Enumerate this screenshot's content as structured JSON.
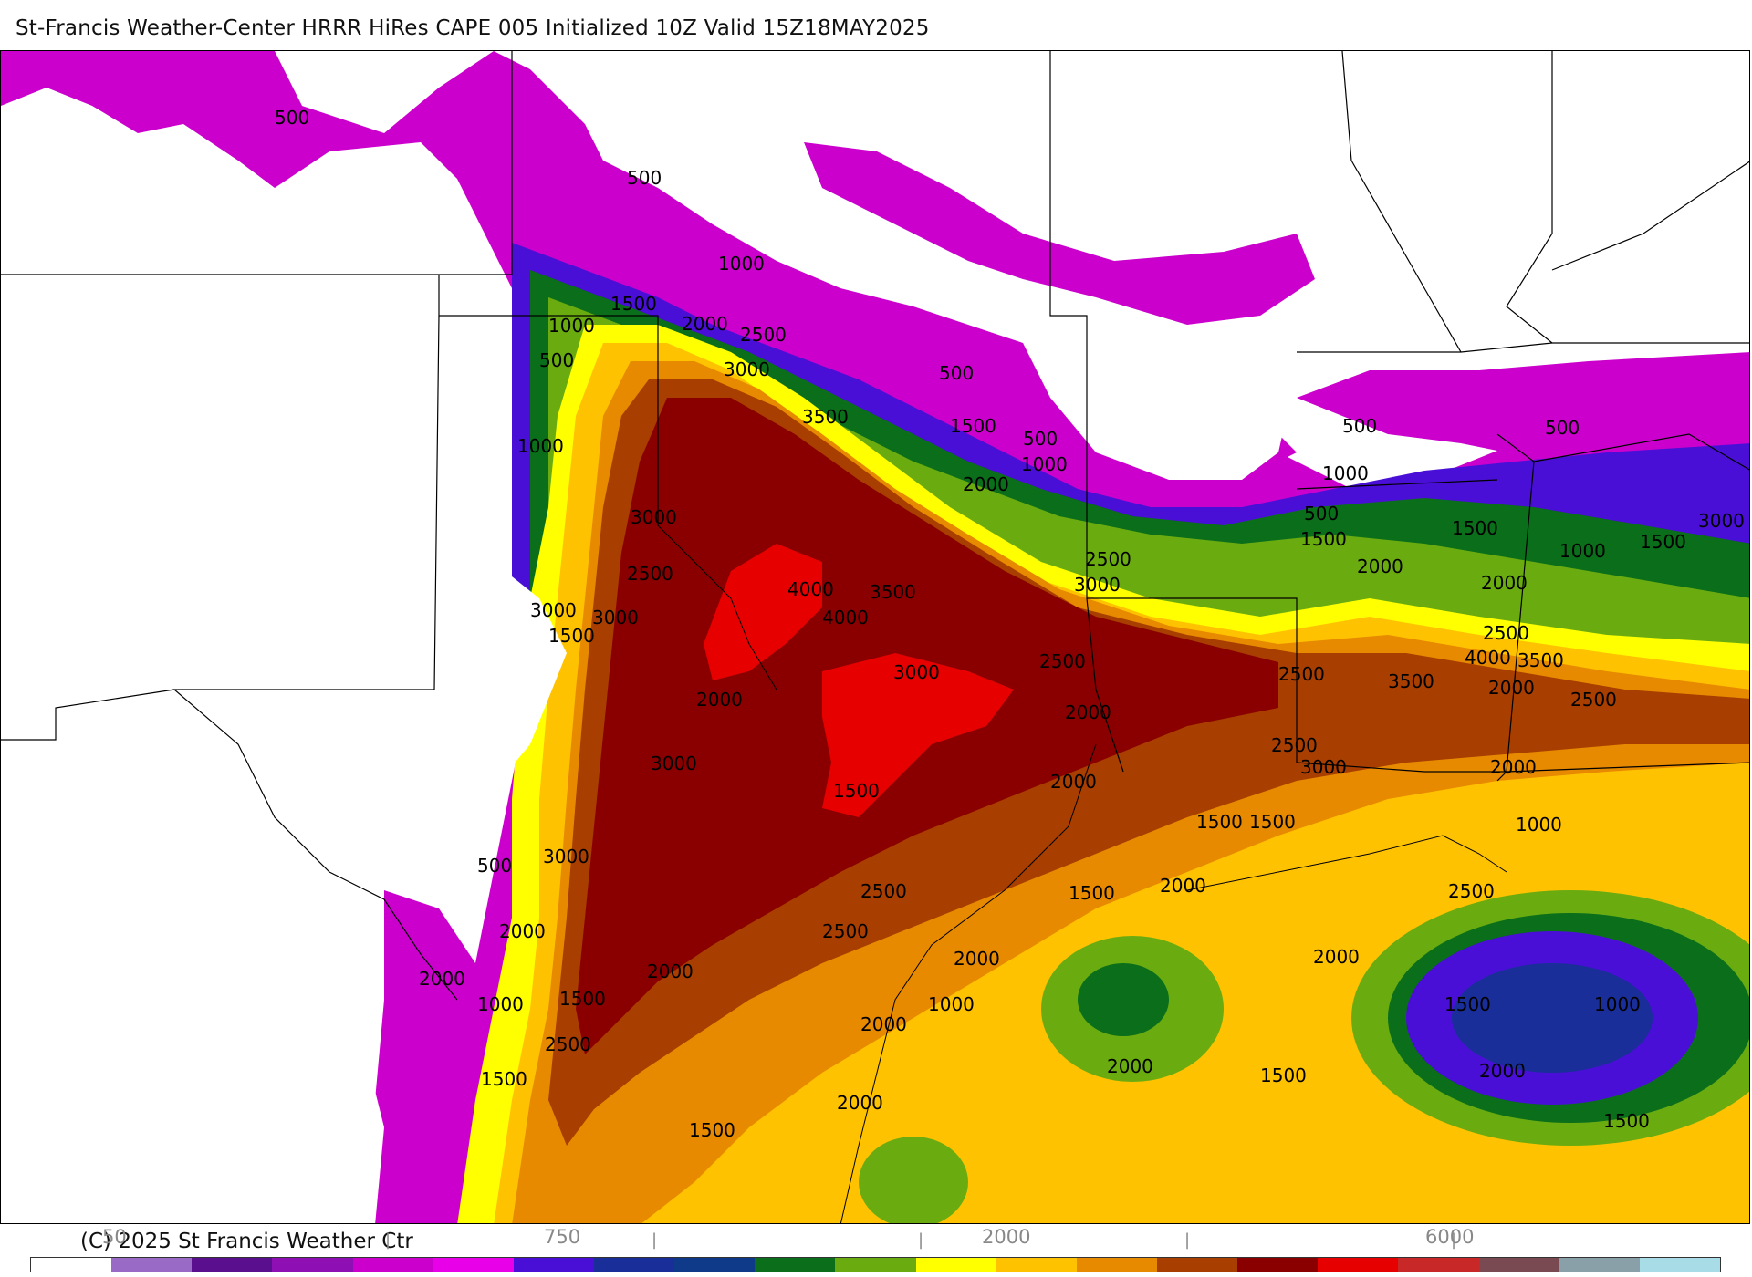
{
  "header": {
    "title": "St-Francis Weather-Center HRRR HiRes CAPE  005 Initialized  10Z Valid 15Z18MAY2025"
  },
  "footer": {
    "copyright": "(C) 2025 St Francis Weather Ctr"
  },
  "colorbar": {
    "labels": [
      "50",
      "750",
      "2000",
      "6000"
    ],
    "colors": [
      "#ffffff",
      "#9a6bc6",
      "#5a0f8f",
      "#8e0fb3",
      "#cc00cc",
      "#e800e8",
      "#4a0fd6",
      "#1a2e9a",
      "#0f3a8a",
      "#0a6e1a",
      "#6aac10",
      "#ffff00",
      "#ffc200",
      "#e88a00",
      "#a83e00",
      "#8a0000",
      "#e60000",
      "#c82828",
      "#7a4a52",
      "#8aa0a8",
      "#a8dce6"
    ]
  },
  "map": {
    "contour_labels": [
      "500",
      "500",
      "1000",
      "1500",
      "1000",
      "2000",
      "2500",
      "500",
      "3000",
      "3500",
      "500",
      "1500",
      "500",
      "1000",
      "2000",
      "1000",
      "3000",
      "2500",
      "4000",
      "3500",
      "4000",
      "2500",
      "3000",
      "500",
      "1000",
      "1500",
      "500",
      "2000",
      "1500",
      "2000",
      "500",
      "1000",
      "1500",
      "2500",
      "4000",
      "3500",
      "3000",
      "3000",
      "1500",
      "3000",
      "2500",
      "2000",
      "3000",
      "2500",
      "3500",
      "2000",
      "2500",
      "2000",
      "3000",
      "2500",
      "3000",
      "2000",
      "2000",
      "1500",
      "1500",
      "1500",
      "1000",
      "500",
      "3000",
      "2500",
      "1500",
      "2000",
      "2500",
      "2000",
      "2500",
      "2000",
      "2000",
      "2000",
      "2000",
      "1500",
      "1000",
      "1000",
      "2000",
      "1500",
      "1000",
      "2500",
      "2000",
      "1500",
      "2000",
      "1500",
      "2000",
      "1500"
    ]
  }
}
